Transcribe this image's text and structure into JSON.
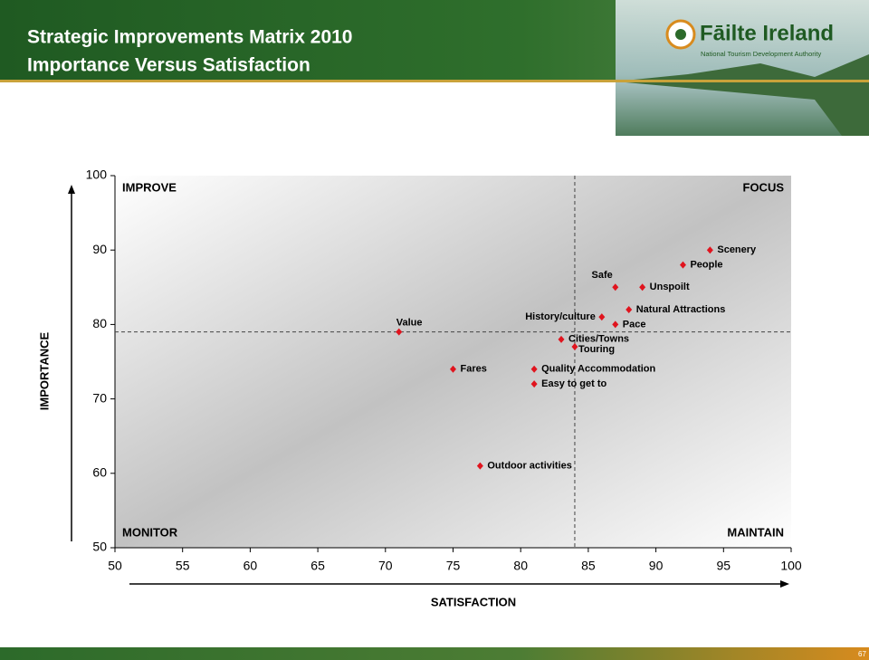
{
  "header": {
    "title_line1": "Strategic Improvements Matrix 2010",
    "title_line2": "Importance Versus Satisfaction"
  },
  "logo": {
    "name": "Fāilte Ireland",
    "tagline": "National Tourism Development Authority"
  },
  "page_number": "67",
  "chart_data": {
    "type": "scatter",
    "x_label": "SATISFACTION",
    "y_label": "IMPORTANCE",
    "quadrant_labels": {
      "top_left": "IMPROVE",
      "top_right": "FOCUS",
      "bottom_left": "MONITOR",
      "bottom_right": "MAINTAIN"
    },
    "labels": [
      "Scenery",
      "People",
      "Safe",
      "Unspoilt",
      "Natural Attractions",
      "History/culture",
      "Pace",
      "Value",
      "Cities/Towns",
      "Touring",
      "Fares",
      "Quality Accommodation",
      "Easy to get to",
      "Outdoor activities"
    ],
    "x": [
      94,
      92,
      87,
      89,
      88,
      86,
      87,
      71,
      83,
      84,
      75,
      81,
      81,
      77
    ],
    "values": [
      90,
      88,
      85,
      85,
      82,
      81,
      80,
      79,
      78,
      77,
      74,
      74,
      72,
      61
    ],
    "color": "#e0141e",
    "xref": 84,
    "yref": 79,
    "xlim": [
      50,
      100
    ],
    "xticks": [
      50,
      55,
      60,
      65,
      70,
      75,
      80,
      85,
      90,
      95,
      100
    ],
    "ylim": [
      50,
      100
    ],
    "yticks": [
      50,
      60,
      70,
      80,
      90,
      100
    ]
  }
}
